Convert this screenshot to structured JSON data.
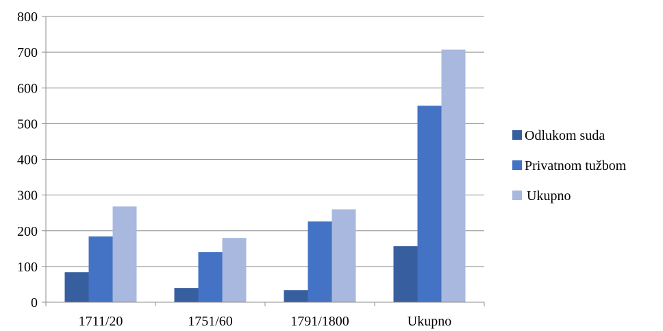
{
  "chart_data": {
    "type": "bar",
    "categories": [
      "1711/20",
      "1751/60",
      "1791/1800",
      "Ukupno"
    ],
    "series": [
      {
        "name": "Odlukom suda",
        "values": [
          84,
          40,
          34,
          157
        ],
        "color": "#375E9F"
      },
      {
        "name": "Privatnom tužbom",
        "values": [
          184,
          140,
          226,
          550
        ],
        "color": "#4472C4"
      },
      {
        "name": "Ukupno",
        "values": [
          268,
          180,
          260,
          707
        ],
        "color": "#A8B8DE"
      }
    ],
    "ylim": [
      0,
      800
    ],
    "yticks": [
      "0",
      "100",
      "200",
      "300",
      "400",
      "500",
      "600",
      "700",
      "800"
    ],
    "grid": true,
    "legend_position": "right"
  }
}
